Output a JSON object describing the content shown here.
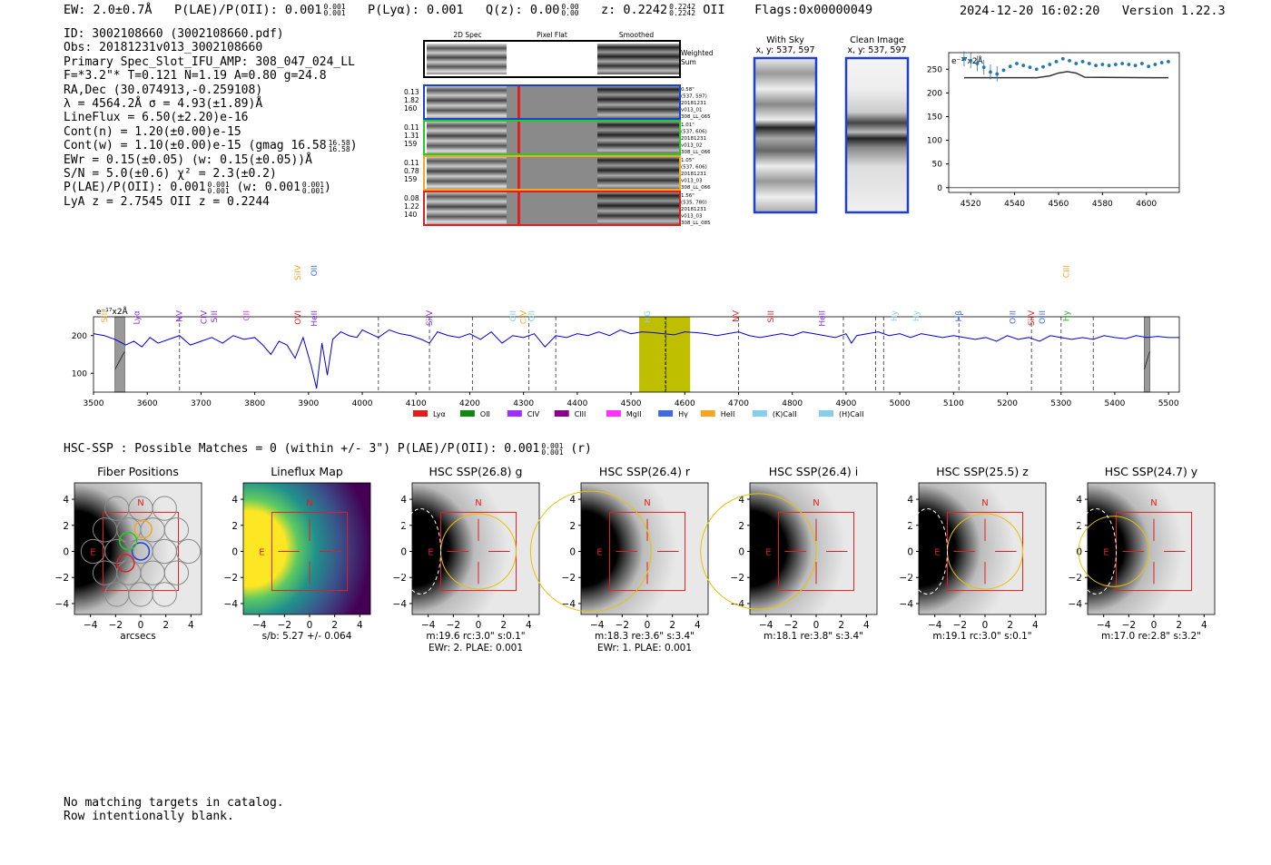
{
  "header": {
    "ew": "EW: 2.0±0.7Å",
    "plae": "P(LAE)/P(OII): 0.001",
    "plae_hi": "0.001",
    "plae_lo": "0.001",
    "plya": "P(Lyα): 0.001",
    "qz": "Q(z): 0.00",
    "qz_hi": "0.00",
    "qz_lo": "0.00",
    "z": "z: 0.2242",
    "z_hi": "0.2242",
    "z_lo": "0.2242",
    "z_line": "OII",
    "flags": "Flags:0x00000049",
    "datetime": "2024-12-20 16:02:20",
    "version": "Version 1.22.3"
  },
  "info": {
    "id": "ID: 3002108660 (3002108660.pdf)",
    "obs": "Obs: 20181231v013_3002108660",
    "primary": "Primary Spec_Slot_IFU_AMP: 308_047_024_LL",
    "params": "F=*3.2\"*  T=0.121  N=1.19  A=0.80  g=24.8",
    "radec": "RA,Dec (30.074913,-0.259108)",
    "lambda": "λ = 4564.2Å   σ = 4.93(±1.89)Å",
    "lineflux": "LineFlux = 6.50(±2.20)e-16",
    "contn": "Cont(n) = 1.20(±0.00)e-15",
    "contw": "Cont(w) = 1.10(±0.00)e-15 (gmag 16.58",
    "gmag_hi": "16.58",
    "gmag_lo": "16.58",
    "contw_end": ")",
    "ewr": "EWr = 0.15(±0.05) (w: 0.15(±0.05))Å",
    "sn": "S/N = 5.0(±0.6)  χ² = 2.3(±0.2)",
    "plae": "P(LAE)/P(OII): 0.001",
    "plae_hi": "0.001",
    "plae_lo": "0.001",
    "plae_w": "(w: 0.001",
    "plae_w_hi": "0.001",
    "plae_w_lo": "0.001",
    "plae_w_end": ")",
    "z": "LyA z = 2.7545   OII z = 0.2244"
  },
  "cutouts": {
    "headers": [
      "2D Spec",
      "Pixel Flat",
      "Smoothed"
    ],
    "weighted_sum": [
      "Weighted",
      "Sum"
    ],
    "rows": [
      {
        "left": [
          "0.13",
          "1.82",
          "160"
        ],
        "right": [
          "0.58\"",
          "(537, 597)",
          "20181231",
          "v013_01",
          "308_LL_065"
        ],
        "color": "#1f3fd0"
      },
      {
        "left": [
          "0.11",
          "1.31",
          "159"
        ],
        "right": [
          "1.01\"",
          "(537, 606)",
          "20181231",
          "v013_02",
          "308_LL_066"
        ],
        "color": "#22cc22"
      },
      {
        "left": [
          "0.11",
          "0.78",
          "159"
        ],
        "right": [
          "1.05\"",
          "(537, 606)",
          "20181231",
          "v013_03",
          "308_LL_066"
        ],
        "color": "#f5a623"
      },
      {
        "left": [
          "0.08",
          "1.22",
          "140"
        ],
        "right": [
          "1.56\"",
          "(535, 780)",
          "20181231",
          "v013_03",
          "308_LL_085"
        ],
        "color": "#e02020"
      }
    ]
  },
  "sky_panels": {
    "with_sky_title": "With Sky",
    "with_sky_coords": "x, y: 537, 597",
    "clean_title": "Clean Image",
    "clean_coords": "x, y: 537, 597"
  },
  "zoom_chart": {
    "units_label": "e⁻¹⁷x2Å"
  },
  "spectrum": {
    "units_label": "e⁻¹⁷x2Å",
    "line_labels": [
      {
        "name": "SiII",
        "color": "#f5a623",
        "wl": 3520,
        "row": "low"
      },
      {
        "name": "Lyα",
        "color": "#8a2be2",
        "wl": 3580,
        "row": "low"
      },
      {
        "name": "NV",
        "color": "#8a2be2",
        "wl": 3660,
        "row": "low"
      },
      {
        "name": "CIV",
        "color": "#8a2be2",
        "wl": 3705,
        "row": "low"
      },
      {
        "name": "SiII",
        "color": "#8a2be2",
        "wl": 3725,
        "row": "low"
      },
      {
        "name": "CII",
        "color": "#d633ff",
        "wl": 3785,
        "row": "low"
      },
      {
        "name": "OVI",
        "color": "#e02020",
        "wl": 3880,
        "row": "low"
      },
      {
        "name": "SiIV",
        "color": "#f5a623",
        "wl": 3880,
        "row": "high"
      },
      {
        "name": "HeII",
        "color": "#8a2be2",
        "wl": 3910,
        "row": "low"
      },
      {
        "name": "OII",
        "color": "#4169e1",
        "wl": 3910,
        "row": "high"
      },
      {
        "name": "SiIV",
        "color": "#8a2be2",
        "wl": 4125,
        "row": "low"
      },
      {
        "name": "OII",
        "color": "#87ceeb",
        "wl": 4280,
        "row": "low"
      },
      {
        "name": "CIV",
        "color": "#f5a623",
        "wl": 4300,
        "row": "low"
      },
      {
        "name": "OII",
        "color": "#87ceeb",
        "wl": 4315,
        "row": "low"
      },
      {
        "name": "HG",
        "color": "#87ceeb",
        "wl": 4530,
        "row": "low"
      },
      {
        "name": "NV",
        "color": "#e02020",
        "wl": 4695,
        "row": "low"
      },
      {
        "name": "SiII",
        "color": "#e02020",
        "wl": 4760,
        "row": "low"
      },
      {
        "name": "HeII",
        "color": "#8a2be2",
        "wl": 4855,
        "row": "low"
      },
      {
        "name": "Hy",
        "color": "#87ceeb",
        "wl": 4990,
        "row": "low"
      },
      {
        "name": "Hy",
        "color": "#87ceeb",
        "wl": 5030,
        "row": "low"
      },
      {
        "name": "Hβ",
        "color": "#4169e1",
        "wl": 5110,
        "row": "low"
      },
      {
        "name": "OIII",
        "color": "#4169e1",
        "wl": 5210,
        "row": "low"
      },
      {
        "name": "SiIV",
        "color": "#e02020",
        "wl": 5245,
        "row": "low"
      },
      {
        "name": "OIII",
        "color": "#4169e1",
        "wl": 5265,
        "row": "low"
      },
      {
        "name": "CIII",
        "color": "#f5a623",
        "wl": 5310,
        "row": "high"
      },
      {
        "name": "Hy",
        "color": "#22aa22",
        "wl": 5310,
        "row": "low"
      }
    ],
    "legend": [
      {
        "label": "Lyα",
        "color": "#e02020"
      },
      {
        "label": "OII",
        "color": "#118811"
      },
      {
        "label": "CIV",
        "color": "#9b30ff"
      },
      {
        "label": "CIII",
        "color": "#8b008b"
      },
      {
        "label": "MgII",
        "color": "#ff33ff"
      },
      {
        "label": "Hγ",
        "color": "#4169e1"
      },
      {
        "label": "HeII",
        "color": "#f5a623"
      },
      {
        "label": "(K)CaII",
        "color": "#87ceeb"
      },
      {
        "label": "(H)CaII",
        "color": "#87ceeb"
      }
    ]
  },
  "hsc_line": {
    "text": "HSC-SSP : Possible Matches = 0 (within +/- 3\")  P(LAE)/P(OII): 0.001",
    "hi": "0.001",
    "lo": "0.001",
    "end": "(r)"
  },
  "panels": [
    {
      "title": "Fiber Positions",
      "caption1": "arcsecs",
      "caption2": ""
    },
    {
      "title": "Lineflux Map",
      "caption1": "s/b: 5.27 +/- 0.064",
      "caption2": ""
    },
    {
      "title": "HSC SSP(26.8) g",
      "caption1": "m:19.6 rc:3.0\"  s:0.1\"",
      "caption2": "EWr: 2. PLAE: 0.001"
    },
    {
      "title": "HSC SSP(26.4) r",
      "caption1": "m:18.3  re:3.6\"  s:3.4\"",
      "caption2": "EWr: 1. PLAE: 0.001"
    },
    {
      "title": "HSC SSP(26.4) i",
      "caption1": "m:18.1  re:3.8\"  s:3.4\"",
      "caption2": ""
    },
    {
      "title": "HSC SSP(25.5) z",
      "caption1": "m:19.1 rc:3.0\"  s:0.1\"",
      "caption2": ""
    },
    {
      "title": "HSC SSP(24.7) y",
      "caption1": "m:17.0  re:2.8\"  s:3.2\"",
      "caption2": ""
    }
  ],
  "compass": {
    "north": "N",
    "east": "E"
  },
  "catalog_note": {
    "line1": "No matching targets in catalog.",
    "line2": "Row intentionally blank."
  },
  "chart_data": [
    {
      "type": "scatter",
      "title": "",
      "xlabel": "",
      "ylabel": "e-17x2Å",
      "xlim": [
        4510,
        4615
      ],
      "ylim": [
        -10,
        285
      ],
      "xticks": [
        4520,
        4540,
        4560,
        4580,
        4600
      ],
      "yticks": [
        0,
        50,
        100,
        150,
        200,
        250
      ],
      "series": [
        {
          "name": "data",
          "x": [
            4517,
            4520,
            4523,
            4526,
            4529,
            4532,
            4535,
            4538,
            4541,
            4544,
            4547,
            4550,
            4553,
            4556,
            4559,
            4562,
            4565,
            4568,
            4571,
            4574,
            4577,
            4580,
            4583,
            4586,
            4589,
            4592,
            4595,
            4598,
            4601,
            4604,
            4607,
            4610
          ],
          "y": [
            272,
            268,
            262,
            254,
            244,
            240,
            248,
            256,
            262,
            258,
            254,
            250,
            255,
            260,
            266,
            272,
            268,
            262,
            266,
            262,
            258,
            260,
            258,
            260,
            262,
            260,
            258,
            262,
            256,
            260,
            264,
            266
          ]
        },
        {
          "name": "model",
          "x": [
            4517,
            4550,
            4556,
            4560,
            4564,
            4568,
            4572,
            4610
          ],
          "y": [
            232,
            232,
            236,
            242,
            245,
            242,
            233,
            232
          ]
        }
      ]
    },
    {
      "type": "line",
      "title": "",
      "xlabel": "",
      "ylabel": "e-17x2Å",
      "xlim": [
        3500,
        5520
      ],
      "ylim": [
        50,
        250
      ],
      "xticks": [
        3500,
        3600,
        3700,
        3800,
        3900,
        4000,
        4100,
        4200,
        4300,
        4400,
        4500,
        4600,
        4700,
        4800,
        4900,
        5000,
        5100,
        5200,
        5300,
        5400,
        5500
      ],
      "yticks": [
        100,
        200
      ],
      "highlight_range": [
        4515,
        4610
      ],
      "center_line": 4564,
      "dashed_lines": [
        3660,
        4030,
        4125,
        4205,
        4310,
        4360,
        4565,
        4700,
        4895,
        4955,
        4970,
        5110,
        5245,
        5300,
        5360
      ],
      "masked_ranges": [
        [
          3540,
          3558
        ],
        [
          5455,
          5465
        ]
      ],
      "series": [
        {
          "name": "spectrum",
          "x": [
            3500,
            3520,
            3540,
            3560,
            3575,
            3590,
            3605,
            3620,
            3640,
            3660,
            3680,
            3700,
            3720,
            3740,
            3760,
            3780,
            3800,
            3815,
            3830,
            3845,
            3860,
            3875,
            3890,
            3905,
            3915,
            3925,
            3935,
            3945,
            3960,
            3975,
            3990,
            4000,
            4015,
            4030,
            4050,
            4070,
            4090,
            4110,
            4125,
            4140,
            4160,
            4180,
            4200,
            4220,
            4240,
            4260,
            4280,
            4300,
            4320,
            4340,
            4360,
            4380,
            4400,
            4420,
            4440,
            4460,
            4480,
            4500,
            4520,
            4540,
            4560,
            4580,
            4600,
            4620,
            4640,
            4660,
            4680,
            4700,
            4720,
            4740,
            4760,
            4780,
            4800,
            4820,
            4840,
            4860,
            4880,
            4900,
            4910,
            4920,
            4940,
            4960,
            4980,
            5000,
            5020,
            5040,
            5060,
            5080,
            5100,
            5120,
            5140,
            5160,
            5180,
            5200,
            5220,
            5240,
            5260,
            5280,
            5300,
            5320,
            5340,
            5360,
            5380,
            5400,
            5420,
            5440,
            5460,
            5480,
            5500,
            5520
          ],
          "y": [
            205,
            200,
            190,
            175,
            185,
            170,
            195,
            180,
            190,
            200,
            175,
            185,
            195,
            180,
            200,
            190,
            195,
            175,
            150,
            185,
            175,
            140,
            195,
            120,
            60,
            180,
            95,
            190,
            210,
            200,
            195,
            215,
            205,
            195,
            215,
            205,
            200,
            190,
            180,
            210,
            200,
            195,
            205,
            190,
            210,
            180,
            200,
            195,
            205,
            170,
            200,
            195,
            205,
            200,
            210,
            200,
            215,
            205,
            210,
            208,
            205,
            202,
            210,
            208,
            205,
            200,
            205,
            210,
            200,
            195,
            200,
            205,
            200,
            210,
            205,
            200,
            195,
            205,
            180,
            200,
            205,
            210,
            200,
            205,
            195,
            205,
            200,
            195,
            200,
            195,
            190,
            195,
            185,
            200,
            190,
            195,
            185,
            200,
            195,
            190,
            195,
            190,
            200,
            195,
            192,
            200,
            195,
            198,
            195,
            195
          ]
        }
      ]
    }
  ]
}
